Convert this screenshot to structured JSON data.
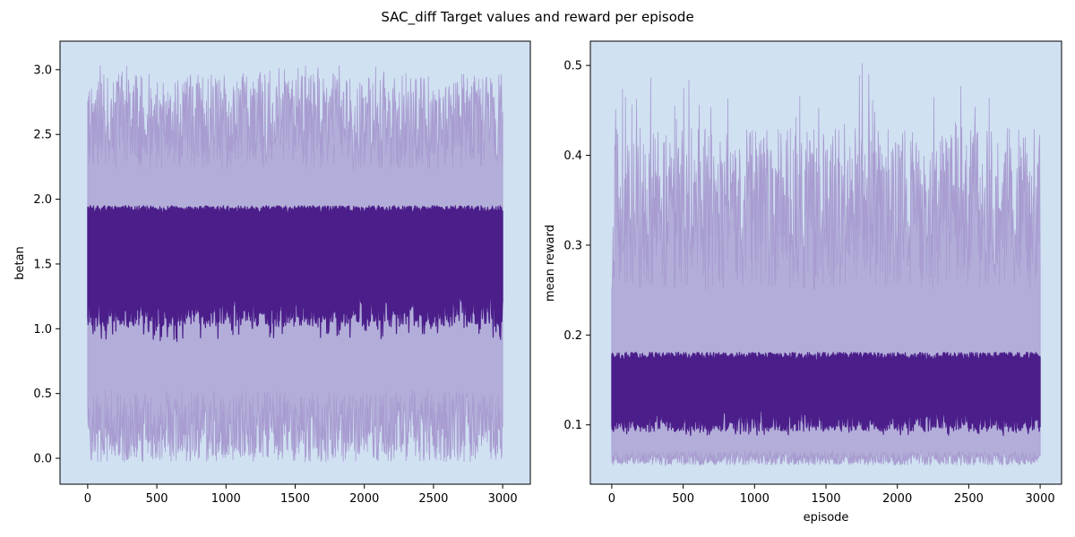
{
  "figure": {
    "suptitle": "SAC_diff Target values and reward per episode"
  },
  "colors": {
    "axes_background": "#d0e1f2",
    "mean_line": "#4b1e8a",
    "band": "#a89cd0"
  },
  "chart_data": [
    {
      "type": "line",
      "title": "",
      "xlabel": "",
      "ylabel": "betan",
      "xlim": [
        -200,
        3200
      ],
      "ylim": [
        -0.2,
        3.22
      ],
      "xticks": [
        0,
        500,
        1000,
        1500,
        2000,
        2500,
        3000
      ],
      "xtick_labels": [
        "0",
        "500",
        "1000",
        "1500",
        "2000",
        "2500",
        "3000"
      ],
      "yticks": [
        0.0,
        0.5,
        1.0,
        1.5,
        2.0,
        2.5,
        3.0
      ],
      "ytick_labels": [
        "0.0",
        "0.5",
        "1.0",
        "1.5",
        "2.0",
        "2.5",
        "3.0"
      ],
      "x_range": [
        0,
        3000
      ],
      "series": [
        {
          "role": "mean",
          "x": [
            0,
            250,
            500,
            750,
            1000,
            1250,
            1500,
            1750,
            2000,
            2250,
            2500,
            2750,
            3000
          ],
          "values": [
            1.2,
            1.35,
            1.45,
            1.5,
            1.8,
            1.3,
            1.9,
            1.1,
            1.6,
            1.5,
            1.2,
            1.85,
            1.8
          ],
          "upper_envelope": 1.92,
          "lower_envelope_typical": 1.15,
          "lower_envelope_min": 0.9,
          "max": 1.97
        },
        {
          "role": "band",
          "upper_typical": 2.6,
          "upper_max": 3.06,
          "lower_typical": 0.25,
          "lower_min": -0.03
        }
      ]
    },
    {
      "type": "line",
      "title": "",
      "xlabel": "episode",
      "ylabel": "mean reward",
      "xlim": [
        -150,
        3150
      ],
      "ylim": [
        0.034,
        0.527
      ],
      "xticks": [
        0,
        500,
        1000,
        1500,
        2000,
        2500,
        3000
      ],
      "xtick_labels": [
        "0",
        "500",
        "1000",
        "1500",
        "2000",
        "2500",
        "3000"
      ],
      "yticks": [
        0.1,
        0.2,
        0.3,
        0.4,
        0.5
      ],
      "ytick_labels": [
        "0.1",
        "0.2",
        "0.3",
        "0.4",
        "0.5"
      ],
      "x_range": [
        0,
        3000
      ],
      "series": [
        {
          "role": "mean",
          "x": [
            0,
            250,
            500,
            750,
            1000,
            1250,
            1500,
            1750,
            2000,
            2250,
            2500,
            2750,
            3000
          ],
          "values": [
            0.11,
            0.13,
            0.15,
            0.16,
            0.14,
            0.12,
            0.15,
            0.14,
            0.13,
            0.16,
            0.12,
            0.15,
            0.16
          ],
          "upper_envelope": 0.176,
          "lower_envelope_typical": 0.105,
          "lower_envelope_min": 0.088,
          "max": 0.184
        },
        {
          "role": "band",
          "upper_typical": 0.34,
          "upper_max": 0.505,
          "lower_typical": 0.063,
          "lower_min": 0.055
        }
      ]
    }
  ]
}
